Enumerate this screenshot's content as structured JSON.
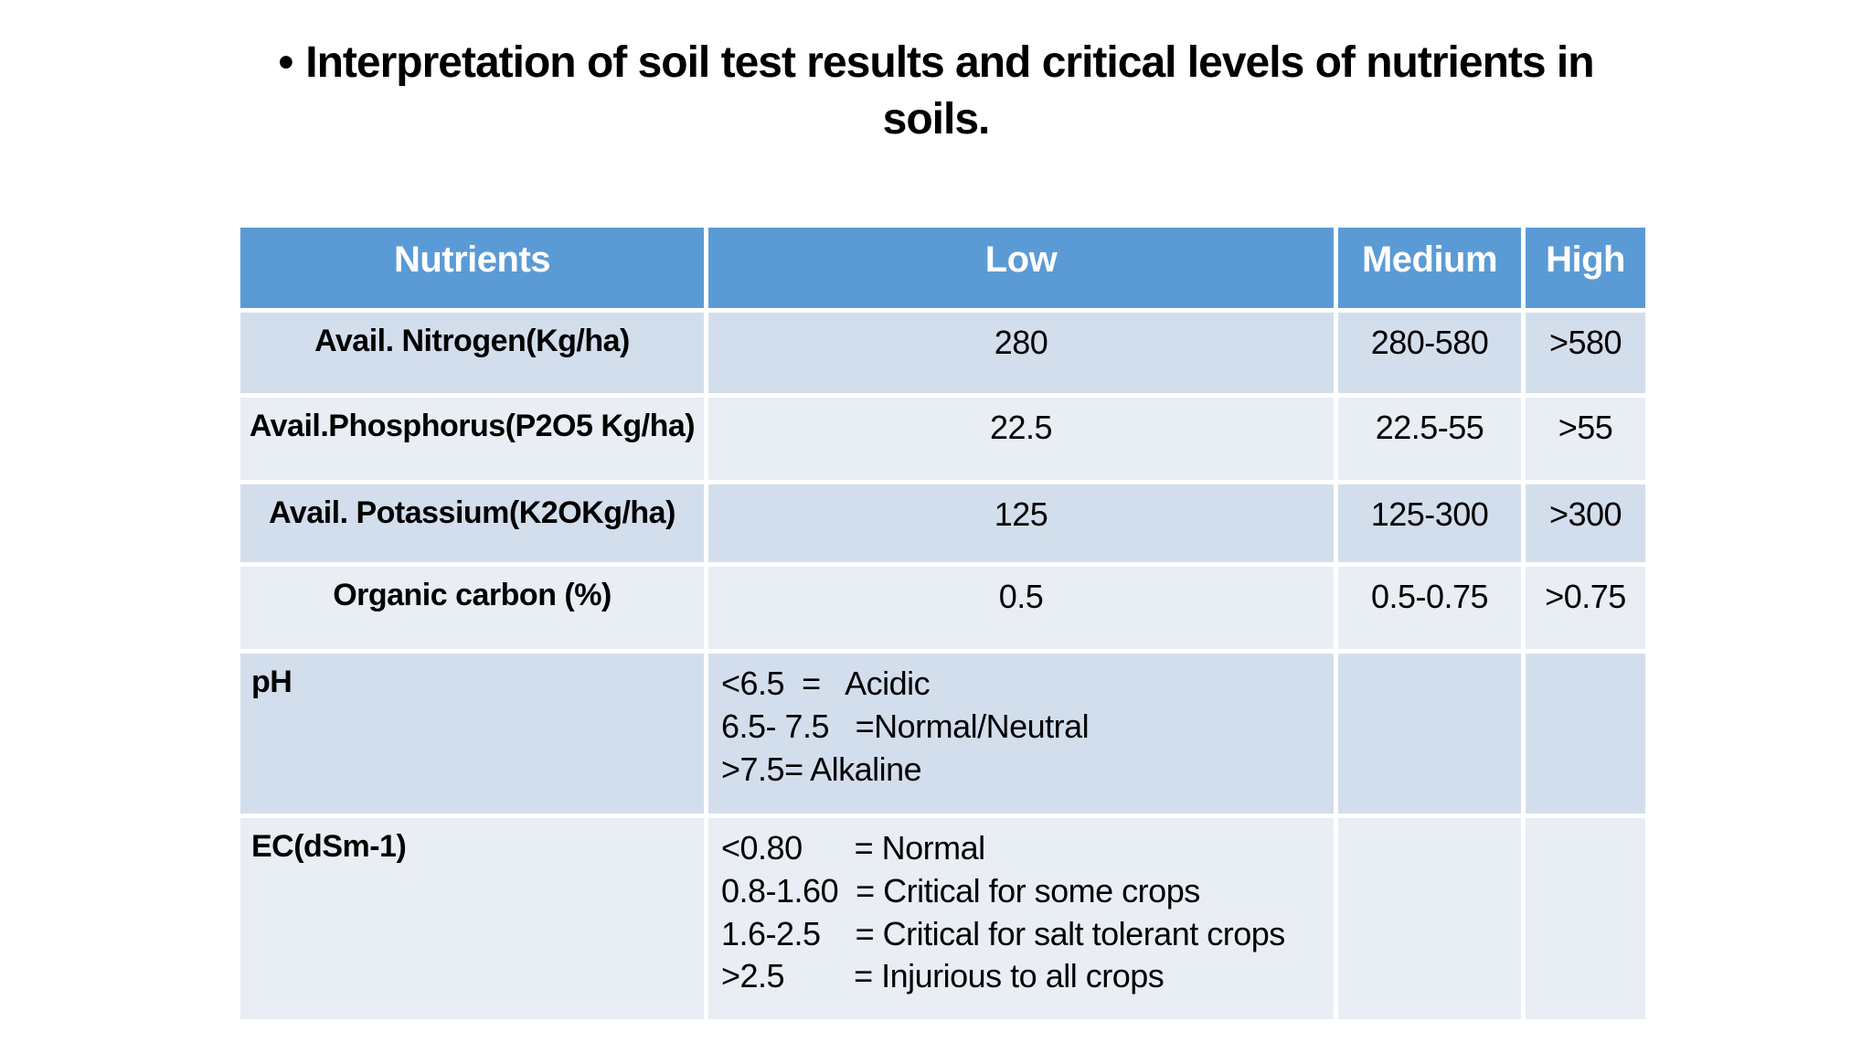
{
  "title": {
    "bullet": "•",
    "text": "Interpretation of soil test results and critical levels of nutrients in soils."
  },
  "table": {
    "headers": [
      "Nutrients",
      "Low",
      "Medium",
      "High"
    ],
    "rows": [
      {
        "name": "Avail. Nitrogen(Kg/ha)",
        "low": "280",
        "medium": "280-580",
        "high": ">580"
      },
      {
        "name": "Avail.Phosphorus(P2O5 Kg/ha)",
        "low": "22.5",
        "medium": "22.5-55",
        "high": ">55"
      },
      {
        "name": "Avail. Potassium(K2OKg/ha)",
        "low": "125",
        "medium": "125-300",
        "high": ">300"
      },
      {
        "name": "Organic carbon (%)",
        "low": "0.5",
        "medium": "0.5-0.75",
        "high": ">0.75"
      },
      {
        "name": "pH",
        "low": "<6.5  =   Acidic\n6.5- 7.5   =Normal/Neutral\n>7.5= Alkaline",
        "medium": "",
        "high": ""
      },
      {
        "name": "EC(dSm-1)",
        "low": "<0.80      = Normal\n0.8-1.60  = Critical for some crops\n1.6-2.5    = Critical for salt tolerant crops\n>2.5        = Injurious to all crops",
        "medium": "",
        "high": ""
      }
    ]
  },
  "colors": {
    "header-bg": "#5B9BD5",
    "header-text": "#FFFFFF",
    "band-odd": "#D3DEEC",
    "band-even": "#E9EDF4",
    "title-text": "#000000"
  }
}
